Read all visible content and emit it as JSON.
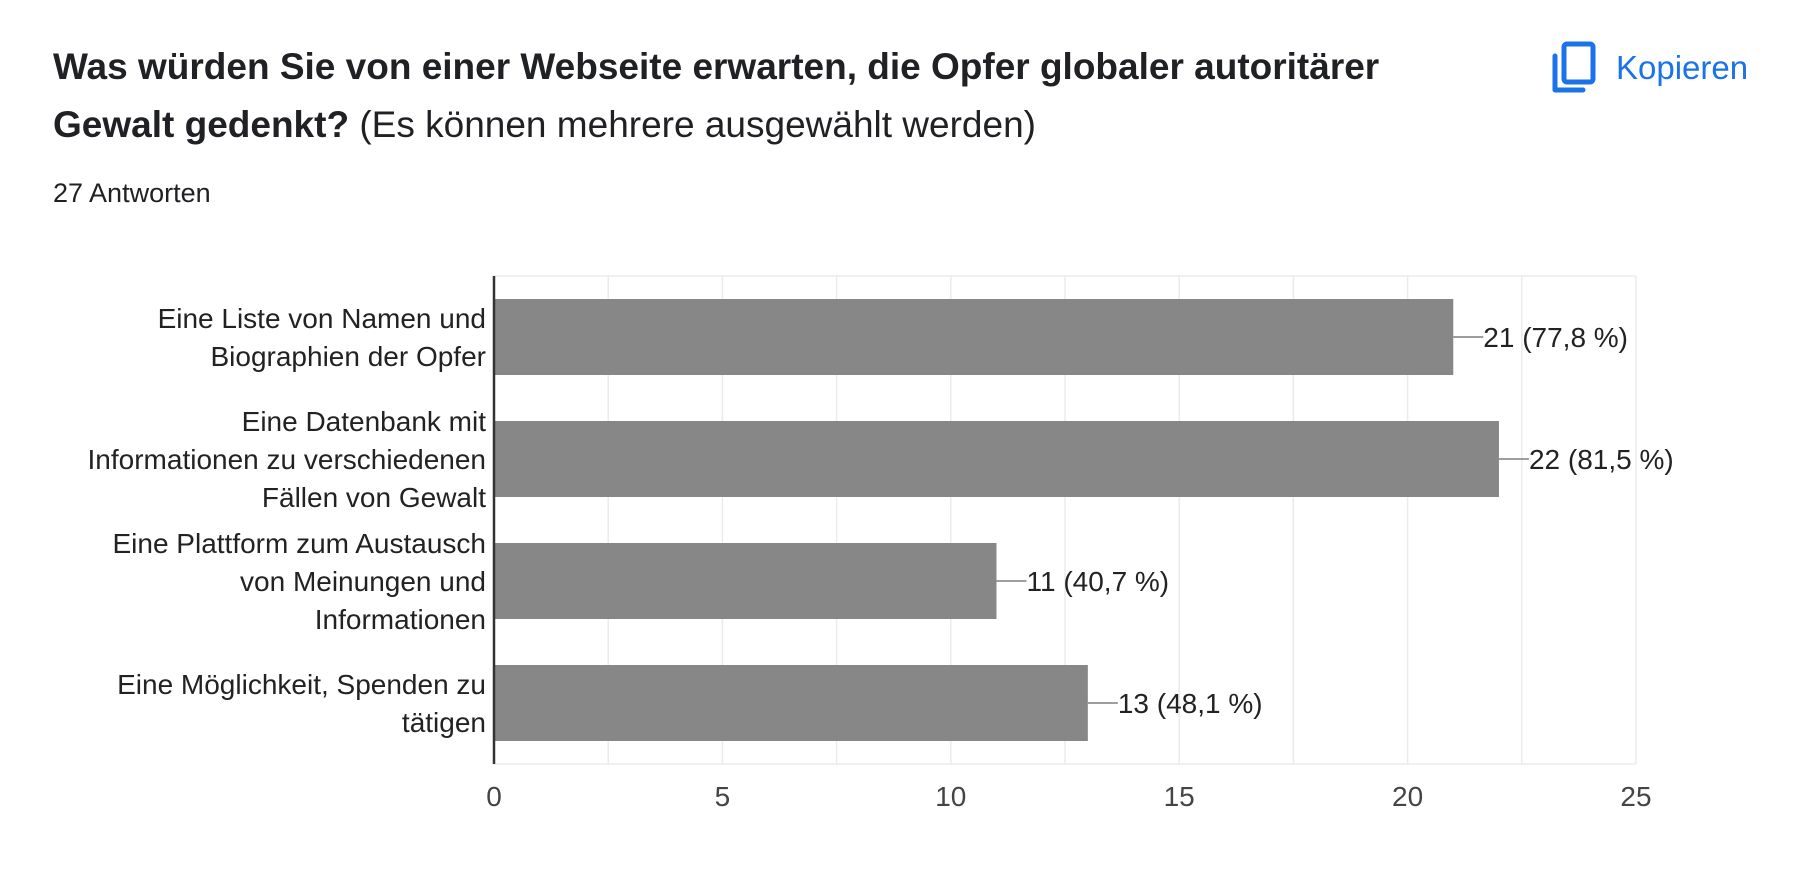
{
  "question": {
    "title": "Was würden Sie von einer Webseite erwarten, die Opfer globaler autoritärer Gewalt gedenkt?",
    "hint": "(Es können mehrere ausgewählt werden)"
  },
  "copy_button": {
    "label": "Kopieren",
    "icon": "copy-icon"
  },
  "responses": {
    "label": "27 Antworten"
  },
  "colors": {
    "bar": "#878787",
    "axis": "#333333",
    "grid": "#ebebeb",
    "accent": "#1a73e8"
  },
  "chart_data": {
    "type": "bar",
    "orientation": "horizontal",
    "categories": [
      [
        "Eine Liste von Namen und",
        "Biographien der Opfer"
      ],
      [
        "Eine Datenbank mit",
        "Informationen zu verschiedenen",
        "Fällen von Gewalt"
      ],
      [
        "Eine Plattform zum Austausch",
        "von Meinungen und",
        "Informationen"
      ],
      [
        "Eine Möglichkeit, Spenden zu",
        "tätigen"
      ]
    ],
    "values": [
      21,
      22,
      11,
      13
    ],
    "data_labels": [
      "21 (77,8 %)",
      "22 (81,5 %)",
      "11 (40,7 %)",
      "13 (48,1 %)"
    ],
    "xlim": [
      0,
      25
    ],
    "xticks": [
      0,
      5,
      10,
      15,
      20,
      25
    ],
    "grid": true,
    "legend": "none"
  }
}
